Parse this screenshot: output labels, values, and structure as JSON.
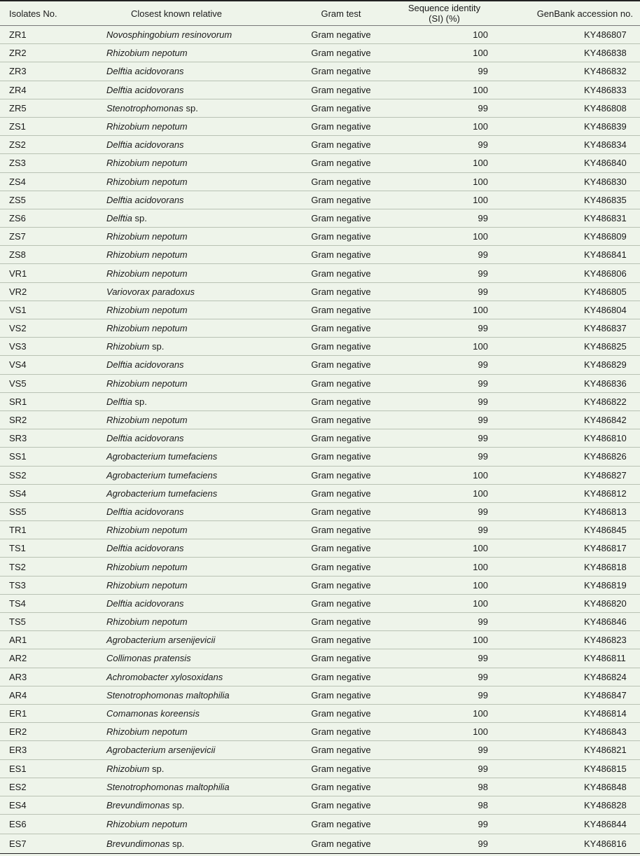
{
  "table": {
    "headers": [
      "Isolates No.",
      "Closest known relative",
      "Gram test",
      "Sequence identity (SI) (%)",
      "GenBank accession no."
    ],
    "rows": [
      {
        "id": "ZR1",
        "genus": "Novosphingobium resinovorum",
        "suffix": "",
        "gram": "Gram negative",
        "si": "100",
        "acc": "KY486807"
      },
      {
        "id": "ZR2",
        "genus": "Rhizobium nepotum",
        "suffix": "",
        "gram": "Gram negative",
        "si": "100",
        "acc": "KY486838"
      },
      {
        "id": "ZR3",
        "genus": "Delftia acidovorans",
        "suffix": "",
        "gram": "Gram negative",
        "si": "99",
        "acc": "KY486832"
      },
      {
        "id": "ZR4",
        "genus": "Delftia acidovorans",
        "suffix": "",
        "gram": "Gram negative",
        "si": "100",
        "acc": "KY486833"
      },
      {
        "id": "ZR5",
        "genus": "Stenotrophomonas",
        "suffix": " sp.",
        "gram": "Gram negative",
        "si": "99",
        "acc": "KY486808"
      },
      {
        "id": "ZS1",
        "genus": "Rhizobium nepotum",
        "suffix": "",
        "gram": "Gram negative",
        "si": "100",
        "acc": "KY486839"
      },
      {
        "id": "ZS2",
        "genus": "Delftia acidovorans",
        "suffix": "",
        "gram": "Gram negative",
        "si": "99",
        "acc": "KY486834"
      },
      {
        "id": "ZS3",
        "genus": "Rhizobium nepotum",
        "suffix": "",
        "gram": "Gram negative",
        "si": "100",
        "acc": "KY486840"
      },
      {
        "id": "ZS4",
        "genus": "Rhizobium nepotum",
        "suffix": "",
        "gram": "Gram negative",
        "si": "100",
        "acc": "KY486830"
      },
      {
        "id": "ZS5",
        "genus": "Delftia acidovorans",
        "suffix": "",
        "gram": "Gram negative",
        "si": "100",
        "acc": "KY486835"
      },
      {
        "id": "ZS6",
        "genus": "Delftia",
        "suffix": " sp.",
        "gram": "Gram negative",
        "si": "99",
        "acc": "KY486831"
      },
      {
        "id": "ZS7",
        "genus": "Rhizobium nepotum",
        "suffix": "",
        "gram": "Gram negative",
        "si": "100",
        "acc": "KY486809"
      },
      {
        "id": "ZS8",
        "genus": "Rhizobium nepotum",
        "suffix": "",
        "gram": "Gram negative",
        "si": "99",
        "acc": "KY486841"
      },
      {
        "id": "VR1",
        "genus": "Rhizobium nepotum",
        "suffix": "",
        "gram": "Gram negative",
        "si": "99",
        "acc": "KY486806"
      },
      {
        "id": "VR2",
        "genus": "Variovorax paradoxus",
        "suffix": "",
        "gram": "Gram negative",
        "si": "99",
        "acc": "KY486805"
      },
      {
        "id": "VS1",
        "genus": "Rhizobium nepotum",
        "suffix": "",
        "gram": "Gram negative",
        "si": "100",
        "acc": "KY486804"
      },
      {
        "id": "VS2",
        "genus": "Rhizobium nepotum",
        "suffix": "",
        "gram": "Gram negative",
        "si": "99",
        "acc": "KY486837"
      },
      {
        "id": "VS3",
        "genus": "Rhizobium",
        "suffix": " sp.",
        "gram": "Gram negative",
        "si": "100",
        "acc": "KY486825"
      },
      {
        "id": "VS4",
        "genus": "Delftia acidovorans",
        "suffix": "",
        "gram": "Gram negative",
        "si": "99",
        "acc": "KY486829"
      },
      {
        "id": "VS5",
        "genus": "Rhizobium nepotum",
        "suffix": "",
        "gram": "Gram negative",
        "si": "99",
        "acc": "KY486836"
      },
      {
        "id": "SR1",
        "genus": "Delftia",
        "suffix": " sp.",
        "gram": "Gram negative",
        "si": "99",
        "acc": "KY486822"
      },
      {
        "id": "SR2",
        "genus": "Rhizobium nepotum",
        "suffix": "",
        "gram": "Gram negative",
        "si": "99",
        "acc": "KY486842"
      },
      {
        "id": "SR3",
        "genus": "Delftia acidovorans",
        "suffix": "",
        "gram": "Gram negative",
        "si": "99",
        "acc": "KY486810"
      },
      {
        "id": "SS1",
        "genus": "Agrobacterium tumefaciens",
        "suffix": "",
        "gram": "Gram negative",
        "si": "99",
        "acc": "KY486826"
      },
      {
        "id": "SS2",
        "genus": "Agrobacterium tumefaciens",
        "suffix": "",
        "gram": "Gram negative",
        "si": "100",
        "acc": "KY486827"
      },
      {
        "id": "SS4",
        "genus": "Agrobacterium tumefaciens",
        "suffix": "",
        "gram": "Gram negative",
        "si": "100",
        "acc": "KY486812"
      },
      {
        "id": "SS5",
        "genus": "Delftia acidovorans",
        "suffix": "",
        "gram": "Gram negative",
        "si": "99",
        "acc": "KY486813"
      },
      {
        "id": "TR1",
        "genus": "Rhizobium nepotum",
        "suffix": "",
        "gram": "Gram negative",
        "si": "99",
        "acc": "KY486845"
      },
      {
        "id": "TS1",
        "genus": "Delftia acidovorans",
        "suffix": "",
        "gram": "Gram negative",
        "si": "100",
        "acc": "KY486817"
      },
      {
        "id": "TS2",
        "genus": "Rhizobium nepotum",
        "suffix": "",
        "gram": "Gram negative",
        "si": "100",
        "acc": "KY486818"
      },
      {
        "id": "TS3",
        "genus": "Rhizobium nepotum",
        "suffix": "",
        "gram": "Gram negative",
        "si": "100",
        "acc": "KY486819"
      },
      {
        "id": "TS4",
        "genus": "Delftia acidovorans",
        "suffix": "",
        "gram": "Gram negative",
        "si": "100",
        "acc": "KY486820"
      },
      {
        "id": "TS5",
        "genus": "Rhizobium nepotum",
        "suffix": "",
        "gram": "Gram negative",
        "si": "99",
        "acc": "KY486846"
      },
      {
        "id": "AR1",
        "genus": "Agrobacterium arsenijevicii",
        "suffix": "",
        "gram": "Gram negative",
        "si": "100",
        "acc": "KY486823"
      },
      {
        "id": "AR2",
        "genus": "Collimonas pratensis",
        "suffix": "",
        "gram": "Gram negative",
        "si": "99",
        "acc": "KY486811"
      },
      {
        "id": "AR3",
        "genus": "Achromobacter xylosoxidans",
        "suffix": "",
        "gram": "Gram negative",
        "si": "99",
        "acc": "KY486824"
      },
      {
        "id": "AR4",
        "genus": "Stenotrophomonas maltophilia",
        "suffix": "",
        "gram": "Gram negative",
        "si": "99",
        "acc": "KY486847"
      },
      {
        "id": "ER1",
        "genus": "Comamonas koreensis",
        "suffix": "",
        "gram": "Gram negative",
        "si": "100",
        "acc": "KY486814"
      },
      {
        "id": "ER2",
        "genus": "Rhizobium nepotum",
        "suffix": "",
        "gram": "Gram negative",
        "si": "100",
        "acc": "KY486843"
      },
      {
        "id": "ER3",
        "genus": "Agrobacterium arsenijevicii",
        "suffix": "",
        "gram": "Gram negative",
        "si": "99",
        "acc": "KY486821"
      },
      {
        "id": "ES1",
        "genus": "Rhizobium",
        "suffix": " sp.",
        "gram": "Gram negative",
        "si": "99",
        "acc": "KY486815"
      },
      {
        "id": "ES2",
        "genus": "Stenotrophomonas maltophilia",
        "suffix": "",
        "gram": "Gram negative",
        "si": "98",
        "acc": "KY486848"
      },
      {
        "id": "ES4",
        "genus": "Brevundimonas",
        "suffix": " sp.",
        "gram": "Gram negative",
        "si": "98",
        "acc": "KY486828"
      },
      {
        "id": "ES6",
        "genus": "Rhizobium nepotum",
        "suffix": "",
        "gram": "Gram negative",
        "si": "99",
        "acc": "KY486844"
      },
      {
        "id": "ES7",
        "genus": "Brevundimonas",
        "suffix": " sp.",
        "gram": "Gram negative",
        "si": "99",
        "acc": "KY486816"
      }
    ]
  }
}
